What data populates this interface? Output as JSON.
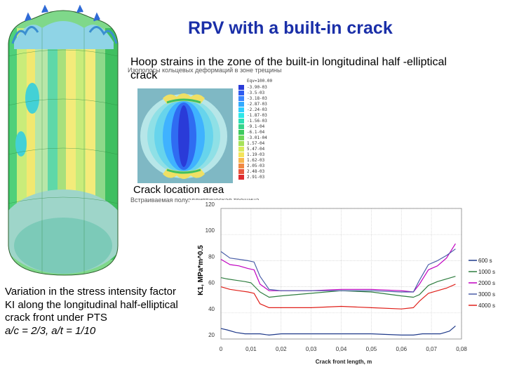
{
  "slide": {
    "title": "RPV with a built-in crack",
    "hoop_caption": "Hoop strains in the zone of the built-in longitudinal half -elliptical crack",
    "crack_location_caption": "Crack location area",
    "description_lines": [
      "Variation in the stress intensity factor",
      "KI along the longitudinal half-elliptical",
      "crack front under PTS"
    ],
    "ratio_text": "a/c = 2/3, a/t = 1/10",
    "inset_title_ru": "Изополосы кольцевых деформаций в зоне трещины",
    "inset_caption_ru": "Встраиваемая полуэллиптическая трещина"
  },
  "contour_scale": {
    "labels": [
      "-3.90-03",
      "-3.5-03",
      "-3.18-03",
      "-2.87-03",
      "-2.24-03",
      "-1.87-03",
      "-1.56-03",
      "-9.1-04",
      "-6.1-04",
      "-3.01-04",
      "1.57-04",
      "5.47-04",
      "1.19-03",
      "1.62-03",
      "2.05-03",
      "2.48-03",
      "2.91-03"
    ],
    "colors": [
      "#2a3bd8",
      "#2f5cf0",
      "#3a86ff",
      "#33aaff",
      "#2fcfff",
      "#2ee7e8",
      "#2ee0b6",
      "#35d48a",
      "#3fca5f",
      "#70d858",
      "#a6e25a",
      "#d8ea5c",
      "#f4e45a",
      "#f8b84e",
      "#f08a44",
      "#e8563c",
      "#dd2b30"
    ],
    "top_label": "Eqv=100.00"
  },
  "chart_data": {
    "type": "line",
    "title": "",
    "xlabel": "Crack front length, m",
    "ylabel": "K1, MPa*m^0.5",
    "xlim": [
      0,
      0.08
    ],
    "ylim": [
      20,
      120
    ],
    "xticks": [
      "0",
      "0,01",
      "0,02",
      "0,03",
      "0,04",
      "0,05",
      "0,06",
      "0,07",
      "0,08"
    ],
    "yticks": [
      "20",
      "40",
      "60",
      "80",
      "100",
      "120"
    ],
    "grid": true,
    "legend_position": "right",
    "series": [
      {
        "name": "600 s",
        "color": "#1f3a8a",
        "x": [
          0,
          0.002,
          0.005,
          0.008,
          0.01,
          0.013,
          0.016,
          0.02,
          0.03,
          0.04,
          0.05,
          0.06,
          0.064,
          0.067,
          0.07,
          0.073,
          0.076,
          0.078
        ],
        "y": [
          28,
          27,
          25,
          24,
          24,
          24,
          23,
          24,
          24,
          24,
          24,
          23,
          23,
          24,
          24,
          24,
          26,
          30
        ]
      },
      {
        "name": "1000 s",
        "color": "#2e7d3f",
        "x": [
          0,
          0.002,
          0.005,
          0.008,
          0.01,
          0.013,
          0.016,
          0.02,
          0.03,
          0.04,
          0.05,
          0.06,
          0.064,
          0.066,
          0.069,
          0.072,
          0.075,
          0.078
        ],
        "y": [
          67,
          66,
          65,
          64,
          63,
          56,
          52,
          53,
          55,
          57,
          56,
          53,
          52,
          54,
          61,
          64,
          66,
          68
        ]
      },
      {
        "name": "2000 s",
        "color": "#c000c0",
        "x": [
          0,
          0.003,
          0.006,
          0.009,
          0.011,
          0.013,
          0.016,
          0.02,
          0.03,
          0.04,
          0.05,
          0.06,
          0.064,
          0.066,
          0.069,
          0.072,
          0.075,
          0.078
        ],
        "y": [
          81,
          77,
          76,
          74,
          73,
          62,
          57,
          57,
          57,
          58,
          58,
          57,
          56,
          62,
          73,
          76,
          82,
          93
        ]
      },
      {
        "name": "3000 s",
        "color": "#4a5ea8",
        "x": [
          0,
          0.003,
          0.006,
          0.009,
          0.011,
          0.013,
          0.016,
          0.02,
          0.03,
          0.04,
          0.05,
          0.06,
          0.064,
          0.066,
          0.069,
          0.072,
          0.075,
          0.078
        ],
        "y": [
          87,
          82,
          81,
          80,
          79,
          68,
          58,
          57,
          57,
          57,
          57,
          56,
          56,
          65,
          77,
          80,
          84,
          89
        ]
      },
      {
        "name": "4000 s",
        "color": "#e0201a",
        "x": [
          0,
          0.003,
          0.006,
          0.009,
          0.011,
          0.013,
          0.016,
          0.02,
          0.03,
          0.04,
          0.05,
          0.06,
          0.064,
          0.066,
          0.069,
          0.072,
          0.075,
          0.078
        ],
        "y": [
          60,
          58,
          57,
          56,
          55,
          47,
          44,
          44,
          44,
          45,
          44,
          43,
          44,
          49,
          55,
          57,
          59,
          62
        ]
      }
    ]
  }
}
